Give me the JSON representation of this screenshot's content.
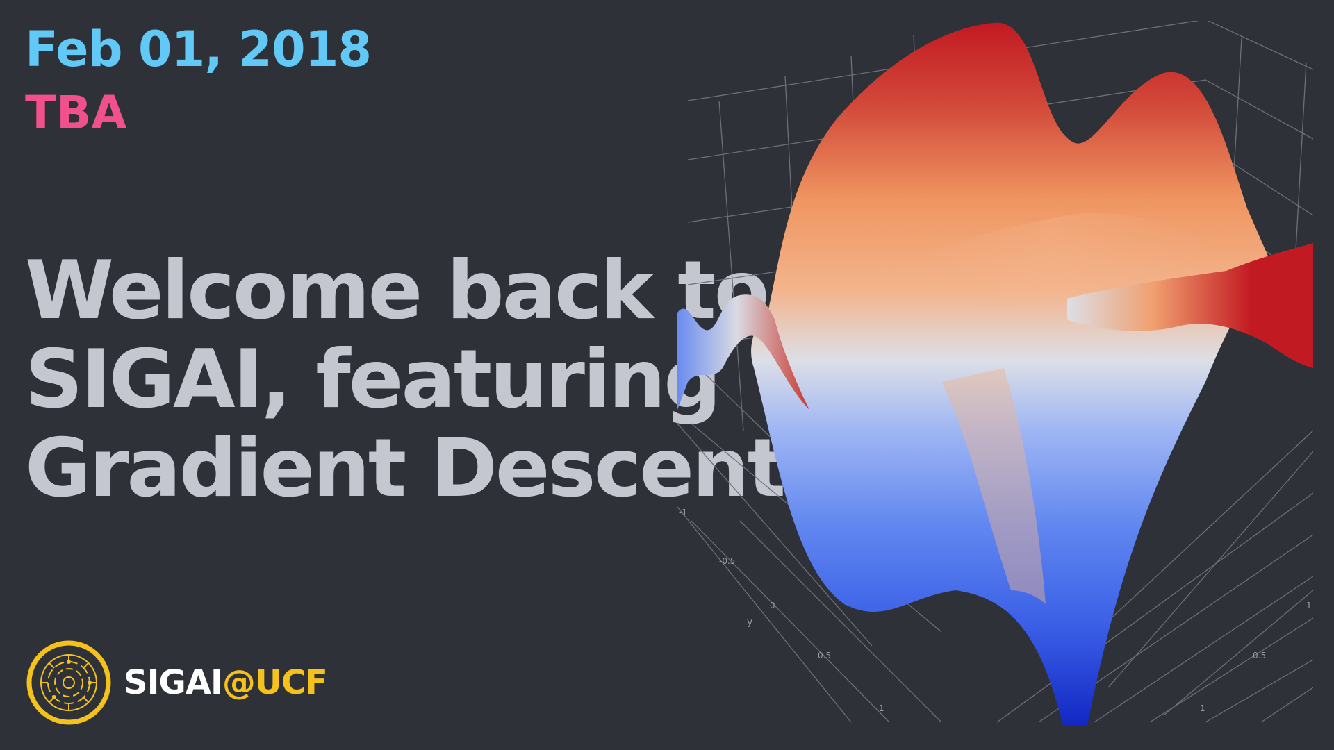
{
  "header": {
    "date": "Feb 01, 2018",
    "subtitle": "TBA"
  },
  "headline": {
    "lines": [
      "Welcome  back to",
      "SIGAI, featuring",
      "Gradient Descent"
    ]
  },
  "brand": {
    "name": "SIGAI",
    "at": "@UCF",
    "logo_icon": "circuit-circle-icon"
  },
  "plot": {
    "axis_label_y": "y",
    "ticks_left": [
      "-1",
      "-0.5",
      "0",
      "0.5",
      "1"
    ],
    "ticks_right": [
      "1",
      "0.5",
      "1"
    ]
  },
  "colors": {
    "background": "#2f3139",
    "date": "#62c8f6",
    "subtitle": "#f0508c",
    "headline": "#c4c7d0",
    "brand_accent": "#f4c21a",
    "surface_high": "#c21a22",
    "surface_mid": "#f2a878",
    "surface_neutral": "#dcdfe6",
    "surface_low": "#1530c8"
  }
}
